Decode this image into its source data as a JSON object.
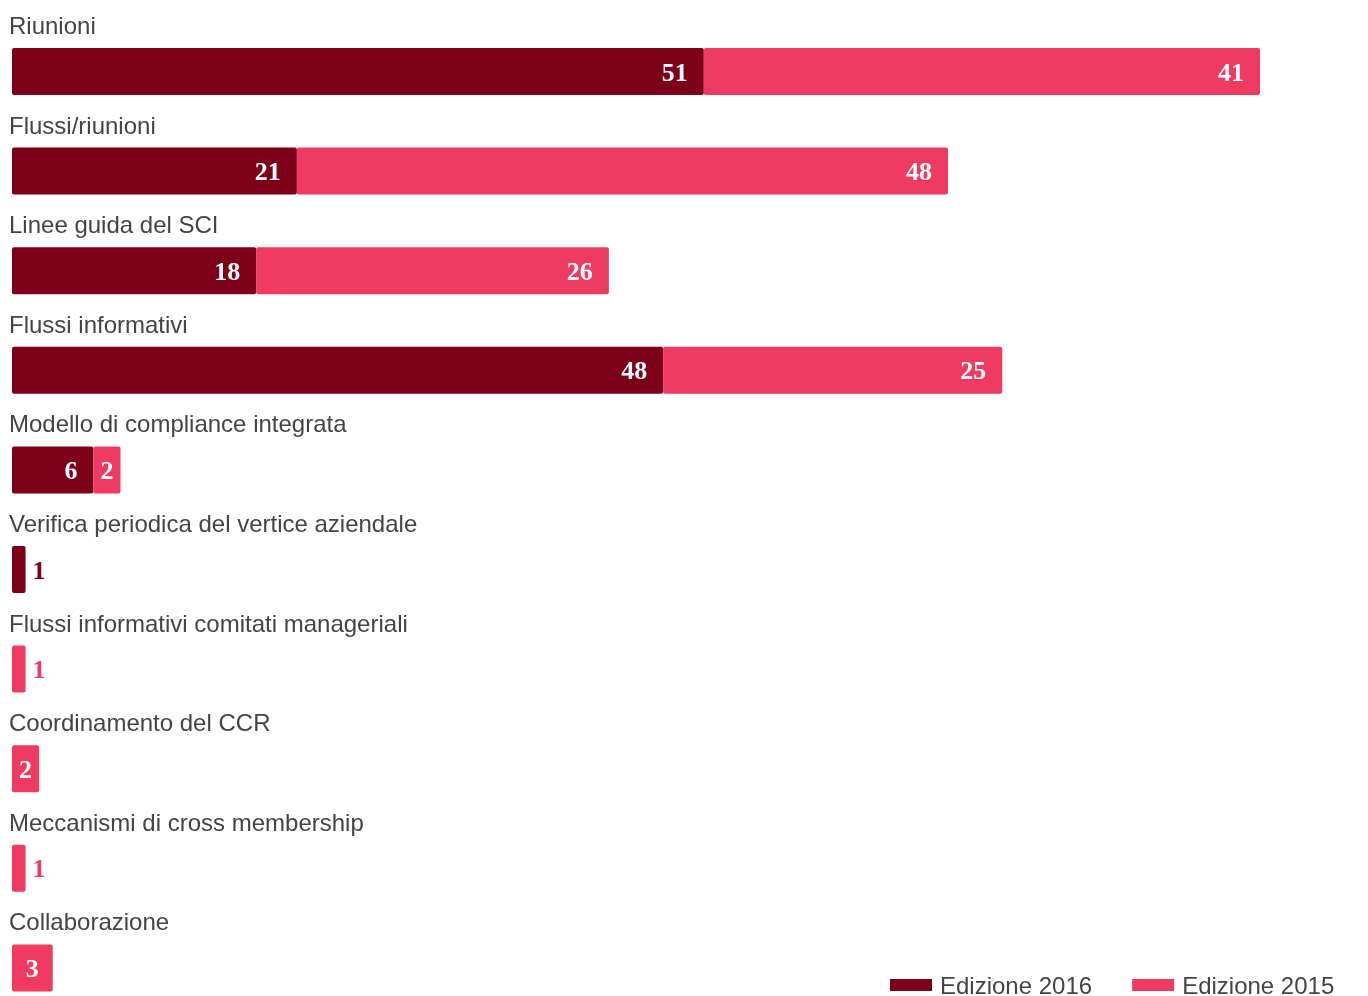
{
  "chart_data": {
    "type": "bar",
    "orientation": "horizontal",
    "stacked": true,
    "data_labels": true,
    "legend": "bottom right",
    "categories": [
      "Riunioni",
      "Flussi/riunioni",
      "Linee guida del SCI",
      "Flussi informativi",
      "Modello di compliance integrata",
      "Verifica periodica del vertice aziendale",
      "Flussi informativi comitati manageriali",
      "Coordinamento del CCR",
      "Meccanismi di cross membership",
      "Collaborazione"
    ],
    "series": [
      {
        "name": "Edizione 2016",
        "color": "#7d0019",
        "values": [
          51,
          21,
          18,
          48,
          6,
          1,
          null,
          null,
          null,
          null
        ]
      },
      {
        "name": "Edizione 2015",
        "color": "#ef3b61",
        "values": [
          41,
          48,
          26,
          25,
          2,
          null,
          1,
          2,
          1,
          3
        ]
      }
    ]
  }
}
